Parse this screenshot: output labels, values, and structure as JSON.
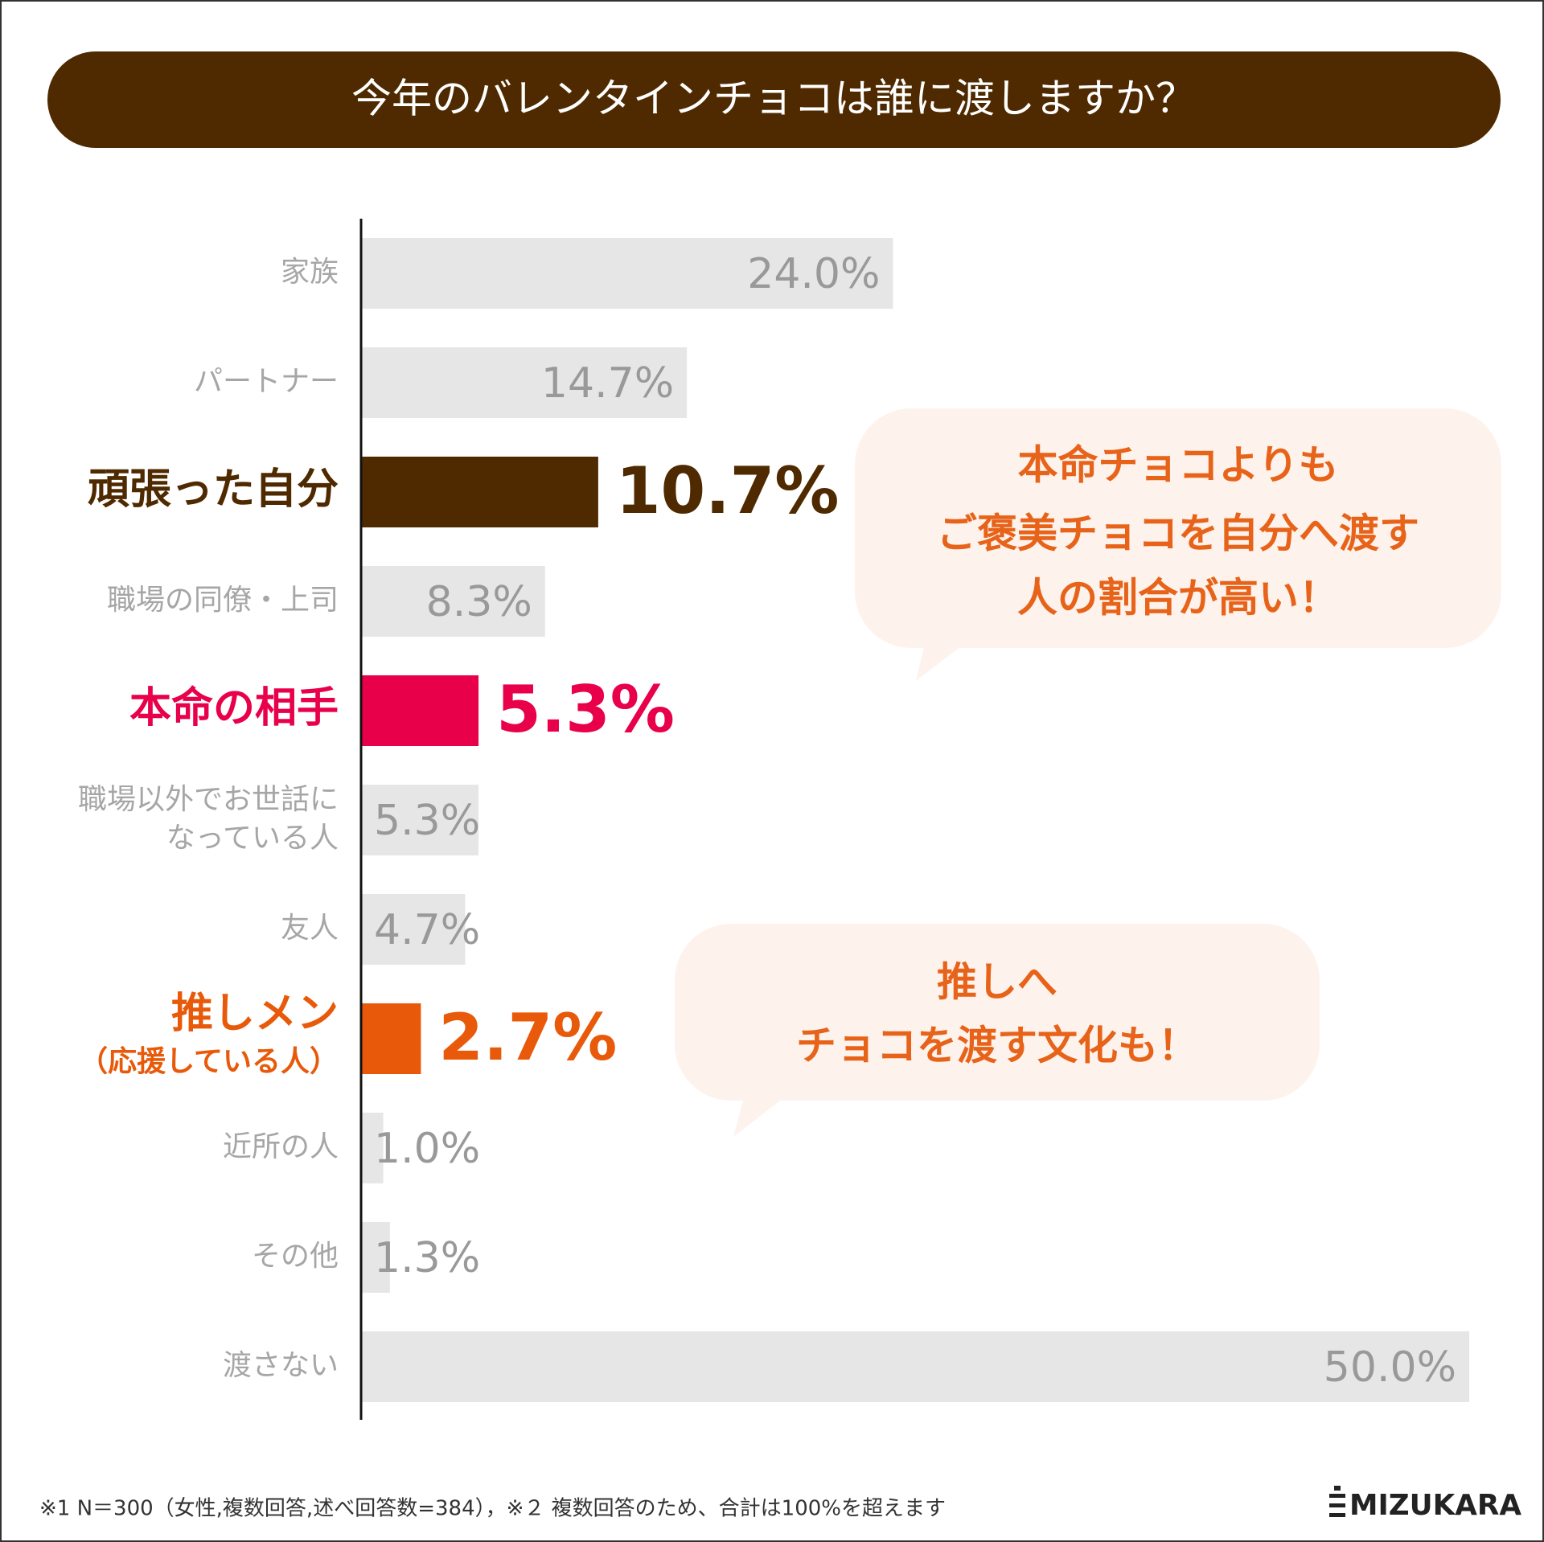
{
  "chart_data": {
    "type": "bar",
    "orientation": "horizontal",
    "title": "今年のバレンタインチョコは誰に渡しますか？",
    "categories": [
      "家族",
      "パートナー",
      "頑張った自分",
      "職場の同僚・上司",
      "本命の相手",
      "職場以外でお世話に\nなっている人",
      "友人",
      "推しメン\n（応援している人）",
      "近所の人",
      "その他",
      "渡さない"
    ],
    "values": [
      24.0,
      14.7,
      10.7,
      8.3,
      5.3,
      5.3,
      4.7,
      2.7,
      1.0,
      1.3,
      50.0
    ],
    "value_labels": [
      "24.0%",
      "14.7%",
      "10.7%",
      "8.3%",
      "5.3%",
      "5.3%",
      "4.7%",
      "2.7%",
      "1.0%",
      "1.3%",
      "50.0%"
    ],
    "color": "#e6e6e6",
    "colors": [
      "#e6e6e6",
      "#e6e6e6",
      "#4f2a00",
      "#e6e6e6",
      "#e8004a",
      "#e6e6e6",
      "#e6e6e6",
      "#e85a0a",
      "#e6e6e6",
      "#e6e6e6",
      "#e6e6e6"
    ],
    "xlim": [
      0,
      50
    ],
    "annotations": [
      {
        "lines": [
          "本命チョコよりも",
          "ご褒美チョコを自分へ渡す",
          "人の割合が高い！"
        ]
      },
      {
        "lines": [
          "推しへ",
          "チョコを渡す文化も！"
        ]
      }
    ],
    "footnote": "※1 N＝300（女性,複数回答,述べ回答数=384），※２ 複数回答のため、合計は100%を超えます",
    "logo": "MIZUKARA"
  }
}
